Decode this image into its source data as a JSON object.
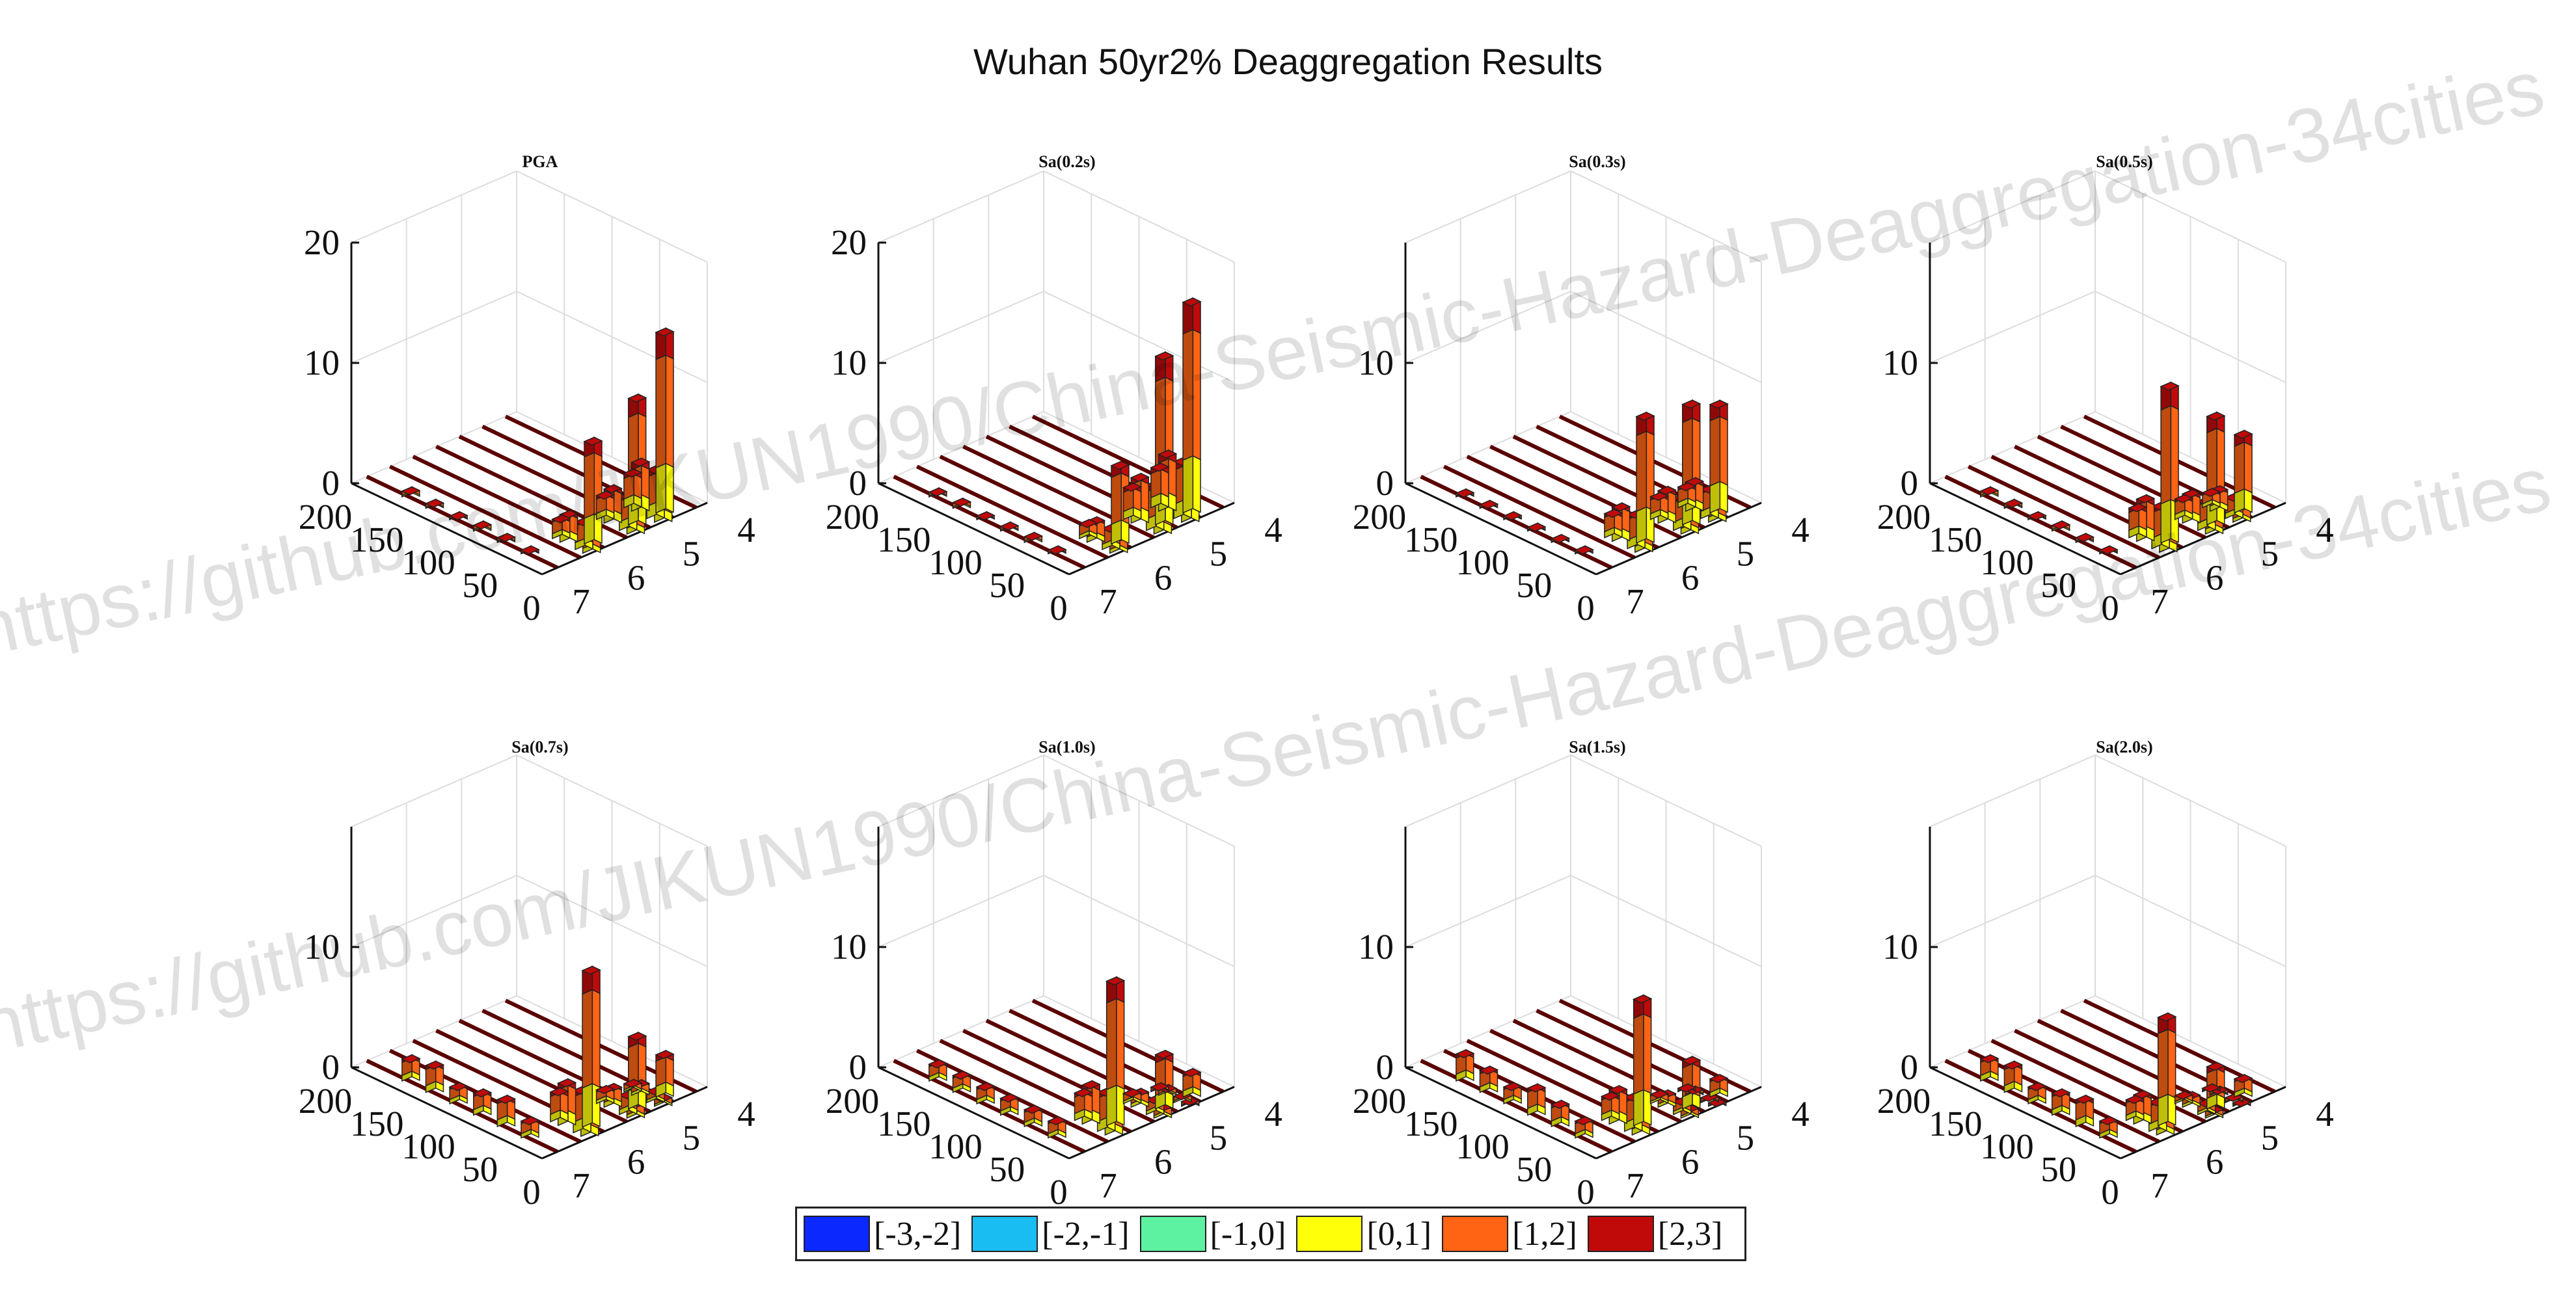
{
  "title": "Wuhan 50yr2% Deaggregation Results",
  "watermark": [
    "https://github.com/JIKUN1990/China-Seismic-Hazard-Deaggregation-34cities",
    "https://github.com/JIKUN1990/China-Seismic-Hazard-Deaggregation-34cities"
  ],
  "legend": [
    {
      "label": "[-3,-2]",
      "color": "#0a28ff"
    },
    {
      "label": "[-2,-1]",
      "color": "#19bdf2"
    },
    {
      "label": "[-1,0]",
      "color": "#5df2a2"
    },
    {
      "label": "[0,1]",
      "color": "#ffff0a"
    },
    {
      "label": "[1,2]",
      "color": "#ff6414"
    },
    {
      "label": "[2,3]",
      "color": "#c00a0a"
    }
  ],
  "chart_data": [
    {
      "type": "bar3d",
      "title": "PGA",
      "zticks": [
        "0",
        "10",
        "20"
      ],
      "zlim": [
        0,
        20
      ],
      "distance_ticks": [
        "200",
        "150",
        "100",
        "50",
        "0"
      ],
      "magnitude_ticks": [
        "4",
        "5",
        "6",
        "7"
      ],
      "peaks": [
        {
          "magnitude": 5.9,
          "distance": 10,
          "value": 8.5
        },
        {
          "magnitude": 5.1,
          "distance": 10,
          "value": 10.5
        },
        {
          "magnitude": 4.6,
          "distance": 10,
          "value": 15.0
        }
      ]
    },
    {
      "type": "bar3d",
      "title": "Sa(0.2s)",
      "zticks": [
        "0",
        "10",
        "20"
      ],
      "zlim": [
        0,
        20
      ],
      "distance_ticks": [
        "200",
        "150",
        "100",
        "50",
        "0"
      ],
      "magnitude_ticks": [
        "4",
        "5",
        "6",
        "7"
      ],
      "peaks": [
        {
          "magnitude": 5.9,
          "distance": 10,
          "value": 6.5
        },
        {
          "magnitude": 5.1,
          "distance": 10,
          "value": 14.0
        },
        {
          "magnitude": 4.6,
          "distance": 10,
          "value": 17.5
        }
      ]
    },
    {
      "type": "bar3d",
      "title": "Sa(0.3s)",
      "zticks": [
        "0",
        "10"
      ],
      "zlim": [
        0,
        20
      ],
      "distance_ticks": [
        "200",
        "150",
        "100",
        "50",
        "0"
      ],
      "magnitude_ticks": [
        "4",
        "5",
        "6",
        "7"
      ],
      "peaks": [
        {
          "magnitude": 5.9,
          "distance": 12,
          "value": 10.5
        },
        {
          "magnitude": 5.1,
          "distance": 10,
          "value": 10.0
        },
        {
          "magnitude": 4.6,
          "distance": 10,
          "value": 9.0
        }
      ]
    },
    {
      "type": "bar3d",
      "title": "Sa(0.5s)",
      "zticks": [
        "0",
        "10"
      ],
      "zlim": [
        0,
        20
      ],
      "distance_ticks": [
        "200",
        "150",
        "100",
        "50",
        "0"
      ],
      "magnitude_ticks": [
        "4",
        "5",
        "6",
        "7"
      ],
      "peaks": [
        {
          "magnitude": 5.9,
          "distance": 12,
          "value": 13.0
        },
        {
          "magnitude": 5.1,
          "distance": 10,
          "value": 9.0
        },
        {
          "magnitude": 4.6,
          "distance": 10,
          "value": 6.5
        }
      ]
    },
    {
      "type": "bar3d",
      "title": "Sa(0.7s)",
      "zticks": [
        "0",
        "10"
      ],
      "zlim": [
        0,
        20
      ],
      "distance_ticks": [
        "200",
        "150",
        "100",
        "50",
        "0"
      ],
      "magnitude_ticks": [
        "4",
        "5",
        "6",
        "7"
      ],
      "peaks": [
        {
          "magnitude": 5.9,
          "distance": 12,
          "value": 13.0
        },
        {
          "magnitude": 5.1,
          "distance": 10,
          "value": 6.0
        },
        {
          "magnitude": 4.6,
          "distance": 10,
          "value": 3.5
        }
      ]
    },
    {
      "type": "bar3d",
      "title": "Sa(1.0s)",
      "zticks": [
        "0",
        "10"
      ],
      "zlim": [
        0,
        20
      ],
      "distance_ticks": [
        "200",
        "150",
        "100",
        "50",
        "0"
      ],
      "magnitude_ticks": [
        "4",
        "5",
        "6",
        "7"
      ],
      "peaks": [
        {
          "magnitude": 5.9,
          "distance": 15,
          "value": 12.0
        },
        {
          "magnitude": 5.1,
          "distance": 10,
          "value": 4.5
        },
        {
          "magnitude": 4.6,
          "distance": 10,
          "value": 2.0
        }
      ]
    },
    {
      "type": "bar3d",
      "title": "Sa(1.5s)",
      "zticks": [
        "0",
        "10"
      ],
      "zlim": [
        0,
        20
      ],
      "distance_ticks": [
        "200",
        "150",
        "100",
        "50",
        "0"
      ],
      "magnitude_ticks": [
        "4",
        "5",
        "6",
        "7"
      ],
      "peaks": [
        {
          "magnitude": 5.9,
          "distance": 15,
          "value": 10.5
        },
        {
          "magnitude": 5.1,
          "distance": 10,
          "value": 4.0
        },
        {
          "magnitude": 4.6,
          "distance": 10,
          "value": 1.5
        }
      ]
    },
    {
      "type": "bar3d",
      "title": "Sa(2.0s)",
      "zticks": [
        "0",
        "10"
      ],
      "zlim": [
        0,
        20
      ],
      "distance_ticks": [
        "200",
        "150",
        "100",
        "50",
        "0"
      ],
      "magnitude_ticks": [
        "4",
        "5",
        "6",
        "7"
      ],
      "peaks": [
        {
          "magnitude": 5.9,
          "distance": 15,
          "value": 9.0
        },
        {
          "magnitude": 5.1,
          "distance": 10,
          "value": 3.5
        },
        {
          "magnitude": 4.6,
          "distance": 10,
          "value": 1.5
        }
      ]
    }
  ]
}
